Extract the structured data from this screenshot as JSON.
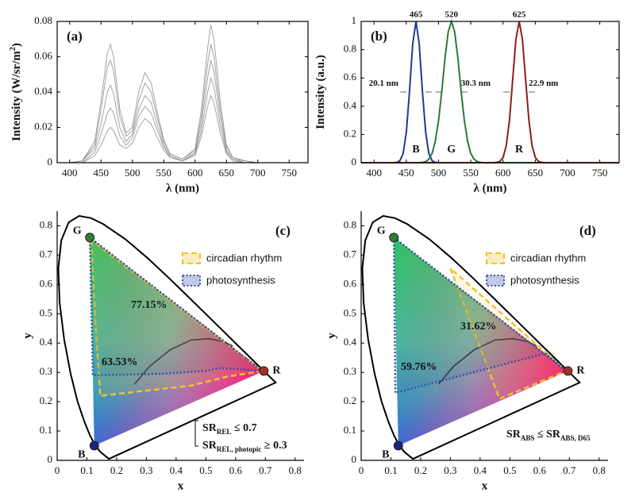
{
  "chart_data": [
    {
      "type": "line",
      "label": "(a)",
      "xlabel": "λ (nm)",
      "ylabel": [
        {
          "text": "Intensity (W/sr/m"
        },
        {
          "text": "2",
          "sup": true
        },
        {
          "text": ")"
        }
      ],
      "xlim": [
        380,
        780
      ],
      "xticks": [
        400,
        450,
        500,
        550,
        600,
        650,
        700,
        750
      ],
      "ylim": [
        0,
        0.08
      ],
      "yticks": [
        0,
        0.02,
        0.04,
        0.06,
        0.08
      ],
      "x": [
        380,
        400,
        420,
        440,
        450,
        460,
        465,
        470,
        480,
        490,
        500,
        510,
        520,
        530,
        540,
        550,
        560,
        580,
        600,
        610,
        620,
        625,
        630,
        640,
        650,
        660,
        680,
        700,
        740,
        780
      ],
      "series": [
        {
          "color": "#8a8a8a",
          "values": [
            0,
            0,
            0.001,
            0.012,
            0.035,
            0.062,
            0.067,
            0.06,
            0.03,
            0.017,
            0.02,
            0.04,
            0.051,
            0.045,
            0.028,
            0.013,
            0.005,
            0.002,
            0.008,
            0.03,
            0.065,
            0.078,
            0.07,
            0.035,
            0.01,
            0.003,
            0.001,
            0,
            0,
            0
          ]
        },
        {
          "color": "#8a8a8a",
          "values": [
            0,
            0,
            0.001,
            0.01,
            0.03,
            0.054,
            0.058,
            0.052,
            0.026,
            0.015,
            0.018,
            0.035,
            0.045,
            0.04,
            0.025,
            0.012,
            0.005,
            0.002,
            0.007,
            0.026,
            0.056,
            0.067,
            0.06,
            0.03,
            0.009,
            0.003,
            0.001,
            0,
            0,
            0
          ]
        },
        {
          "color": "#8a8a8a",
          "values": [
            0,
            0,
            0.001,
            0.008,
            0.022,
            0.04,
            0.044,
            0.039,
            0.02,
            0.012,
            0.016,
            0.03,
            0.038,
            0.034,
            0.021,
            0.01,
            0.004,
            0.001,
            0.006,
            0.022,
            0.048,
            0.058,
            0.052,
            0.026,
            0.007,
            0.002,
            0.001,
            0,
            0,
            0
          ]
        },
        {
          "color": "#8a8a8a",
          "values": [
            0,
            0,
            0,
            0.006,
            0.016,
            0.028,
            0.031,
            0.028,
            0.015,
            0.01,
            0.014,
            0.026,
            0.032,
            0.028,
            0.018,
            0.009,
            0.003,
            0.001,
            0.005,
            0.018,
            0.04,
            0.048,
            0.043,
            0.021,
            0.006,
            0.002,
            0,
            0,
            0,
            0
          ]
        },
        {
          "color": "#8a8a8a",
          "values": [
            0,
            0,
            0,
            0.004,
            0.01,
            0.018,
            0.02,
            0.018,
            0.01,
            0.008,
            0.011,
            0.02,
            0.025,
            0.022,
            0.014,
            0.007,
            0.003,
            0.001,
            0.004,
            0.015,
            0.032,
            0.038,
            0.034,
            0.017,
            0.005,
            0.001,
            0,
            0,
            0,
            0
          ]
        }
      ]
    },
    {
      "type": "line",
      "label": "(b)",
      "xlabel": "λ (nm)",
      "ylabel": [
        {
          "text": "Intensity (a.u.)"
        }
      ],
      "xlim": [
        380,
        780
      ],
      "xticks": [
        400,
        450,
        500,
        550,
        600,
        650,
        700,
        750
      ],
      "ylim": [
        0,
        1
      ],
      "yticks": [
        0,
        0.2,
        0.4,
        0.6,
        0.8,
        1
      ],
      "series": [
        {
          "name": "B",
          "color": "#1f3a93",
          "peak": "465",
          "fwhm": "20.1 nm",
          "x": [
            380,
            430,
            435,
            440,
            445,
            450,
            455,
            460,
            465,
            470,
            475,
            480,
            485,
            490,
            495,
            500,
            780
          ],
          "values": [
            0,
            0,
            0.002,
            0.014,
            0.064,
            0.214,
            0.504,
            0.843,
            1,
            0.843,
            0.504,
            0.214,
            0.064,
            0.014,
            0.002,
            0,
            0
          ]
        },
        {
          "name": "G",
          "color": "#2a7a3a",
          "peak": "520",
          "fwhm": "30.3 nm",
          "x": [
            380,
            470,
            475,
            480,
            485,
            490,
            495,
            500,
            505,
            510,
            515,
            520,
            525,
            530,
            535,
            540,
            545,
            550,
            555,
            560,
            565,
            570,
            780
          ],
          "values": [
            0,
            0,
            0.002,
            0.008,
            0.025,
            0.066,
            0.152,
            0.299,
            0.507,
            0.739,
            0.927,
            1,
            0.927,
            0.739,
            0.507,
            0.299,
            0.152,
            0.066,
            0.025,
            0.008,
            0.002,
            0,
            0
          ]
        },
        {
          "name": "R",
          "color": "#8b1e1e",
          "peak": "625",
          "fwhm": "22.9 nm",
          "x": [
            380,
            585,
            590,
            595,
            600,
            605,
            610,
            615,
            620,
            625,
            630,
            635,
            640,
            645,
            650,
            655,
            660,
            665,
            780
          ],
          "values": [
            0,
            0,
            0.002,
            0.009,
            0.037,
            0.121,
            0.304,
            0.589,
            0.876,
            1,
            0.876,
            0.589,
            0.304,
            0.121,
            0.037,
            0.009,
            0.002,
            0,
            0
          ]
        }
      ]
    },
    {
      "type": "chromaticity",
      "label": "(c)",
      "xlabel": "x",
      "ylabel": [
        {
          "text": "y"
        }
      ],
      "xlim": [
        0,
        0.83
      ],
      "xticks": [
        0,
        0.1,
        0.2,
        0.3,
        0.4,
        0.5,
        0.6,
        0.7,
        0.8
      ],
      "ylim": [
        0,
        0.85
      ],
      "yticks": [
        0,
        0.1,
        0.2,
        0.3,
        0.4,
        0.5,
        0.6,
        0.7,
        0.8
      ],
      "spectral_locus": {
        "x": [
          0.1741,
          0.144,
          0.1241,
          0.1096,
          0.0913,
          0.0687,
          0.0454,
          0.0235,
          0.0082,
          0.0039,
          0.0139,
          0.0389,
          0.0743,
          0.1142,
          0.1547,
          0.2296,
          0.3016,
          0.3731,
          0.4441,
          0.5125,
          0.5752,
          0.627,
          0.6915,
          0.719,
          0.7347
        ],
        "y": [
          0.005,
          0.0297,
          0.0578,
          0.0868,
          0.1327,
          0.2007,
          0.295,
          0.4127,
          0.5384,
          0.6548,
          0.7502,
          0.812,
          0.8338,
          0.8262,
          0.8059,
          0.7543,
          0.6923,
          0.6245,
          0.5547,
          0.4866,
          0.4242,
          0.3725,
          0.3083,
          0.2809,
          0.2653
        ]
      },
      "planckian_locus": {
        "x": [
          0.26,
          0.31,
          0.38,
          0.45,
          0.51,
          0.56,
          0.59
        ],
        "y": [
          0.26,
          0.32,
          0.377,
          0.41,
          0.415,
          0.405,
          0.39
        ]
      },
      "primaries": [
        {
          "name": "G",
          "x": 0.11,
          "y": 0.76,
          "color": "#2e7d32"
        },
        {
          "name": "B",
          "x": 0.125,
          "y": 0.05,
          "color": "#1a237e"
        },
        {
          "name": "R",
          "x": 0.695,
          "y": 0.305,
          "color": "#a0302a"
        }
      ],
      "regions": [
        {
          "name": "circadian rhythm",
          "color": "#f2c12e",
          "style": "dashed",
          "area_label": "77.15%",
          "x": [
            0.115,
            0.13,
            0.145,
            0.45,
            0.57,
            0.69
          ],
          "y": [
            0.75,
            0.45,
            0.22,
            0.255,
            0.285,
            0.305
          ]
        },
        {
          "name": "photosynthesis",
          "color": "#2f4fa8",
          "style": "dotted",
          "area_label": "63.53%",
          "x": [
            0.11,
            0.12,
            0.35,
            0.5,
            0.55,
            0.69
          ],
          "y": [
            0.76,
            0.29,
            0.295,
            0.305,
            0.315,
            0.305
          ]
        }
      ],
      "annotation": [
        [
          {
            "text": "SR"
          },
          {
            "text": "REL",
            "sub": true
          },
          {
            "text": " ≤ 0.7"
          }
        ],
        [
          {
            "text": "SR"
          },
          {
            "text": "REL, photopic",
            "sub": true
          },
          {
            "text": " ≥ 0.3"
          }
        ]
      ]
    },
    {
      "type": "chromaticity",
      "label": "(d)",
      "xlabel": "x",
      "ylabel": [
        {
          "text": "y"
        }
      ],
      "xlim": [
        0,
        0.83
      ],
      "xticks": [
        0,
        0.1,
        0.2,
        0.3,
        0.4,
        0.5,
        0.6,
        0.7,
        0.8
      ],
      "ylim": [
        0,
        0.85
      ],
      "yticks": [
        0,
        0.1,
        0.2,
        0.3,
        0.4,
        0.5,
        0.6,
        0.7,
        0.8
      ],
      "spectral_locus": {
        "x": [
          0.1741,
          0.144,
          0.1241,
          0.1096,
          0.0913,
          0.0687,
          0.0454,
          0.0235,
          0.0082,
          0.0039,
          0.0139,
          0.0389,
          0.0743,
          0.1142,
          0.1547,
          0.2296,
          0.3016,
          0.3731,
          0.4441,
          0.5125,
          0.5752,
          0.627,
          0.6915,
          0.719,
          0.7347
        ],
        "y": [
          0.005,
          0.0297,
          0.0578,
          0.0868,
          0.1327,
          0.2007,
          0.295,
          0.4127,
          0.5384,
          0.6548,
          0.7502,
          0.812,
          0.8338,
          0.8262,
          0.8059,
          0.7543,
          0.6923,
          0.6245,
          0.5547,
          0.4866,
          0.4242,
          0.3725,
          0.3083,
          0.2809,
          0.2653
        ]
      },
      "planckian_locus": {
        "x": [
          0.26,
          0.31,
          0.38,
          0.45,
          0.51,
          0.56,
          0.59
        ],
        "y": [
          0.26,
          0.32,
          0.377,
          0.41,
          0.415,
          0.405,
          0.39
        ]
      },
      "primaries": [
        {
          "name": "G",
          "x": 0.11,
          "y": 0.76,
          "color": "#2e7d32"
        },
        {
          "name": "B",
          "x": 0.125,
          "y": 0.05,
          "color": "#1a237e"
        },
        {
          "name": "R",
          "x": 0.695,
          "y": 0.305,
          "color": "#a0302a"
        }
      ],
      "regions": [
        {
          "name": "circadian rhythm",
          "color": "#f2c12e",
          "style": "dashed",
          "area_label": "31.62%",
          "x": [
            0.3,
            0.465,
            0.69
          ],
          "y": [
            0.655,
            0.21,
            0.305
          ]
        },
        {
          "name": "photosynthesis",
          "color": "#2f4fa8",
          "style": "dotted",
          "area_label": "59.76%",
          "x": [
            0.11,
            0.115,
            0.62,
            0.69
          ],
          "y": [
            0.76,
            0.23,
            0.365,
            0.305
          ]
        }
      ],
      "annotation": [
        [
          {
            "text": "SR"
          },
          {
            "text": "ABS",
            "sub": true
          },
          {
            "text": " ≤ SR"
          },
          {
            "text": "ABS, D65",
            "sub": true
          }
        ]
      ]
    }
  ]
}
